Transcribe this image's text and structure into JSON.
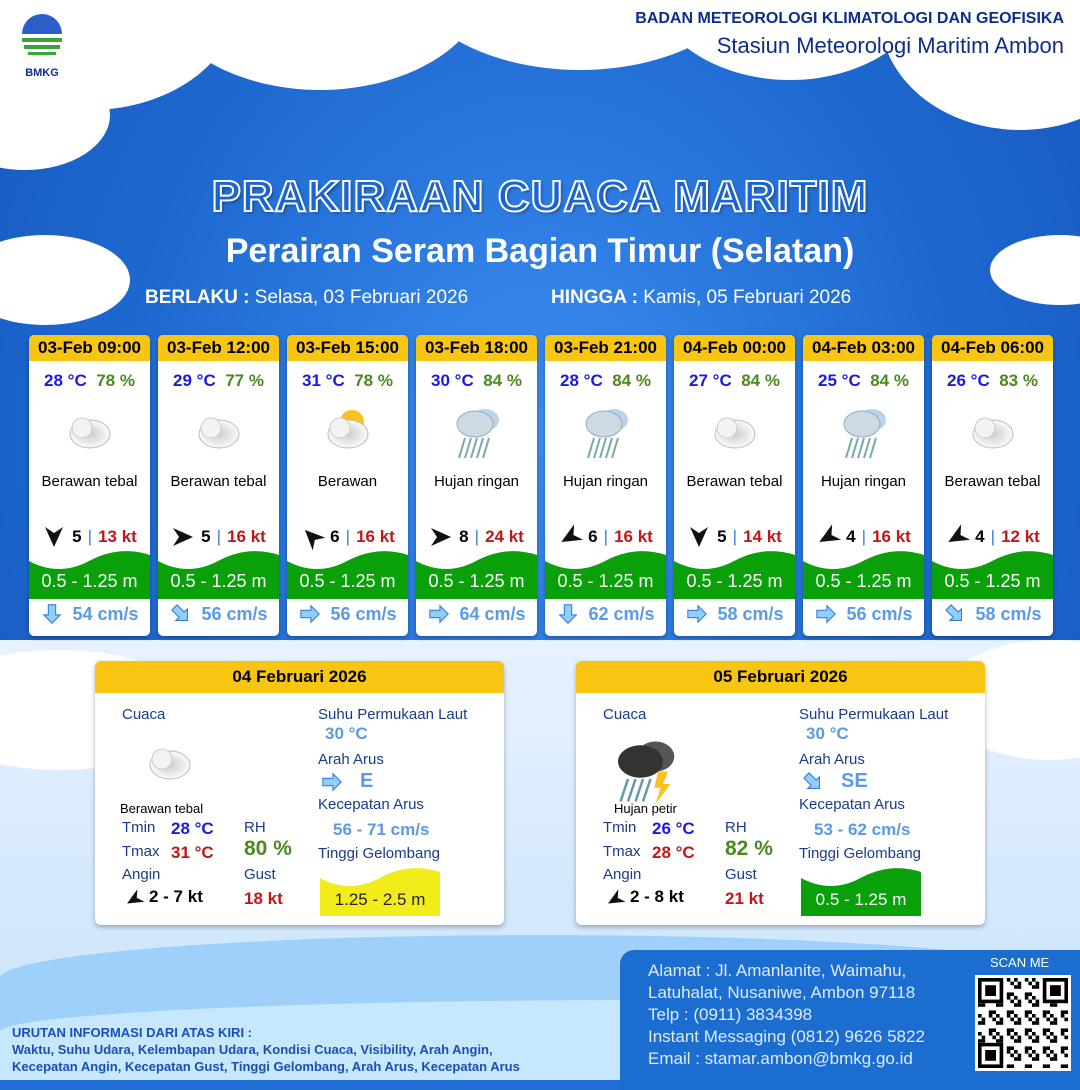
{
  "header": {
    "agency": "BADAN METEOROLOGI KLIMATOLOGI DAN GEOFISIKA",
    "station": "Stasiun Meteorologi Maritim Ambon",
    "logo_text": "BMKG"
  },
  "title": "PRAKIRAAN CUACA MARITIM",
  "subtitle": "Perairan Seram Bagian Timur (Selatan)",
  "validity": {
    "from_label": "BERLAKU :",
    "from": "Selasa, 03 Februari 2026",
    "to_label": "HINGGA :",
    "to": "Kamis, 05 Februari 2026"
  },
  "colors": {
    "header_yellow": "#f8c513",
    "temp": "#1a1ae6",
    "rh": "#4a8a1e",
    "gust": "#c01818",
    "wave_green": "#0aa00a",
    "wave_yellow": "#f2ec1a"
  },
  "forecasts": [
    {
      "time": "03-Feb 09:00",
      "temp": "28 °C",
      "rh": "78 %",
      "icon": "cloudy-icon",
      "cond": "Berawan tebal",
      "wind_speed": "5",
      "gust": "13 kt",
      "wind_dir_deg": 180,
      "wave": "0.5 - 1.25 m",
      "current_dir_deg": 180,
      "current": "54 cm/s"
    },
    {
      "time": "03-Feb 12:00",
      "temp": "29 °C",
      "rh": "77 %",
      "icon": "cloudy-icon",
      "cond": "Berawan tebal",
      "wind_speed": "5",
      "gust": "16 kt",
      "wind_dir_deg": 90,
      "wave": "0.5 - 1.25 m",
      "current_dir_deg": 135,
      "current": "56 cm/s"
    },
    {
      "time": "03-Feb 15:00",
      "temp": "31 °C",
      "rh": "78 %",
      "icon": "partly-cloudy-icon",
      "cond": "Berawan",
      "wind_speed": "6",
      "gust": "16 kt",
      "wind_dir_deg": 315,
      "wave": "0.5 - 1.25 m",
      "current_dir_deg": 90,
      "current": "56 cm/s"
    },
    {
      "time": "03-Feb 18:00",
      "temp": "30 °C",
      "rh": "84 %",
      "icon": "light-rain-icon",
      "cond": "Hujan ringan",
      "wind_speed": "8",
      "gust": "24 kt",
      "wind_dir_deg": 90,
      "wave": "0.5 - 1.25 m",
      "current_dir_deg": 90,
      "current": "64 cm/s"
    },
    {
      "time": "03-Feb 21:00",
      "temp": "28 °C",
      "rh": "84 %",
      "icon": "light-rain-icon",
      "cond": "Hujan ringan",
      "wind_speed": "6",
      "gust": "16 kt",
      "wind_dir_deg": 240,
      "wave": "0.5 - 1.25 m",
      "current_dir_deg": 180,
      "current": "62 cm/s"
    },
    {
      "time": "04-Feb 00:00",
      "temp": "27 °C",
      "rh": "84 %",
      "icon": "cloudy-icon",
      "cond": "Berawan tebal",
      "wind_speed": "5",
      "gust": "14 kt",
      "wind_dir_deg": 180,
      "wave": "0.5 - 1.25 m",
      "current_dir_deg": 90,
      "current": "58 cm/s"
    },
    {
      "time": "04-Feb 03:00",
      "temp": "25 °C",
      "rh": "84 %",
      "icon": "light-rain-icon",
      "cond": "Hujan ringan",
      "wind_speed": "4",
      "gust": "16 kt",
      "wind_dir_deg": 240,
      "wave": "0.5 - 1.25 m",
      "current_dir_deg": 90,
      "current": "56 cm/s"
    },
    {
      "time": "04-Feb 06:00",
      "temp": "26 °C",
      "rh": "83 %",
      "icon": "cloudy-icon",
      "cond": "Berawan tebal",
      "wind_speed": "4",
      "gust": "12 kt",
      "wind_dir_deg": 240,
      "wave": "0.5 - 1.25 m",
      "current_dir_deg": 135,
      "current": "58 cm/s"
    }
  ],
  "daily": [
    {
      "date": "04 Februari 2026",
      "cuaca_label": "Cuaca",
      "icon": "cloudy-icon",
      "cond": "Berawan tebal",
      "tmin_label": "Tmin",
      "tmin": "28 °C",
      "tmax_label": "Tmax",
      "tmax": "31 °C",
      "rh_label": "RH",
      "rh": "80 %",
      "angin_label": "Angin",
      "angin": "2 - 7 kt",
      "gust_label": "Gust",
      "gust": "18 kt",
      "sst_label": "Suhu Permukaan Laut",
      "sst": "30 °C",
      "arus_label": "Arah Arus",
      "arus": "E",
      "current_dir_deg": 90,
      "kec_label": "Kecepatan Arus",
      "kec": "56  - 71 cm/s",
      "tg_label": "Tinggi Gelombang",
      "wave": "1.25 - 2.5 m",
      "wave_color": "#f2ec1a"
    },
    {
      "date": "05 Februari 2026",
      "cuaca_label": "Cuaca",
      "icon": "thunderstorm-icon",
      "cond": "Hujan petir",
      "tmin_label": "Tmin",
      "tmin": "26 °C",
      "tmax_label": "Tmax",
      "tmax": "28 °C",
      "rh_label": "RH",
      "rh": "82 %",
      "angin_label": "Angin",
      "angin": "2 - 8 kt",
      "gust_label": "Gust",
      "gust": "21 kt",
      "sst_label": "Suhu Permukaan Laut",
      "sst": "30 °C",
      "arus_label": "Arah Arus",
      "arus": "SE",
      "current_dir_deg": 135,
      "kec_label": "Kecepatan Arus",
      "kec": "53  - 62 cm/s",
      "tg_label": "Tinggi Gelombang",
      "wave": "0.5 - 1.25 m",
      "wave_color": "#0aa00a"
    }
  ],
  "footer": {
    "legend_title": "URUTAN INFORMASI DARI ATAS KIRI :",
    "legend_line1": "Waktu, Suhu Udara, Kelembapan Udara, Kondisi Cuaca, Visibility, Arah Angin,",
    "legend_line2": "Kecepatan Angin, Kecepatan Gust, Tinggi Gelombang, Arah Arus, Kecepatan Arus",
    "address1": "Alamat : Jl. Amanlanite, Waimahu,",
    "address2": "Latuhalat, Nusaniwe, Ambon 97118",
    "phone": "Telp      : (0911) 3834398",
    "im": "Instant Messaging (0812) 9626 5822",
    "email": "Email     : stamar.ambon@bmkg.go.id",
    "scan": "SCAN ME"
  }
}
